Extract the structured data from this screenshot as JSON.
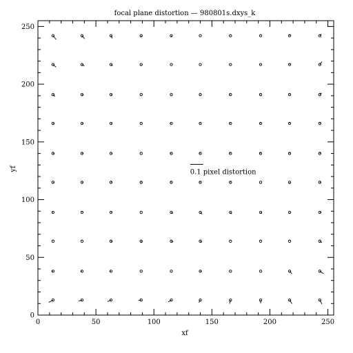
{
  "chart_data": {
    "type": "vector-field",
    "title": "focal plane distortion — 980801s.dxys_k",
    "xlabel": "xf",
    "ylabel": "yf",
    "xlim": [
      0,
      255
    ],
    "ylim": [
      0,
      255
    ],
    "xticks": [
      0,
      50,
      100,
      150,
      200,
      250
    ],
    "yticks": [
      0,
      50,
      100,
      150,
      200,
      250
    ],
    "key": {
      "label": "0.1 pixel distortion",
      "length": 0.1,
      "x": 130,
      "y": 130
    },
    "vector_scale": 115,
    "grid_x": [
      13,
      38,
      63,
      89,
      115,
      140,
      166,
      192,
      217,
      243
    ],
    "grid_y": [
      13,
      38,
      64,
      89,
      115,
      140,
      166,
      191,
      217,
      242
    ],
    "vectors": [
      {
        "x": 13,
        "y": 13,
        "dx": -0.053,
        "dy": -0.029
      },
      {
        "x": 38,
        "y": 13,
        "dx": -0.043,
        "dy": -0.013
      },
      {
        "x": 63,
        "y": 13,
        "dx": -0.044,
        "dy": -0.019
      },
      {
        "x": 89,
        "y": 13,
        "dx": -0.036,
        "dy": -0.004
      },
      {
        "x": 115,
        "y": 13,
        "dx": -0.039,
        "dy": -0.024
      },
      {
        "x": 140,
        "y": 13,
        "dx": -0.019,
        "dy": -0.031
      },
      {
        "x": 166,
        "y": 13,
        "dx": -0.011,
        "dy": -0.047
      },
      {
        "x": 192,
        "y": 13,
        "dx": 0.0,
        "dy": -0.041
      },
      {
        "x": 217,
        "y": 13,
        "dx": 0.03,
        "dy": -0.046
      },
      {
        "x": 243,
        "y": 13,
        "dx": 0.028,
        "dy": -0.05
      },
      {
        "x": 13,
        "y": 38,
        "dx": -0.014,
        "dy": 0.001
      },
      {
        "x": 38,
        "y": 38,
        "dx": -0.012,
        "dy": 0.001
      },
      {
        "x": 63,
        "y": 38,
        "dx": -0.011,
        "dy": 0.0
      },
      {
        "x": 89,
        "y": 38,
        "dx": 0.0,
        "dy": 0.001
      },
      {
        "x": 115,
        "y": 38,
        "dx": 0.001,
        "dy": 0.0
      },
      {
        "x": 140,
        "y": 38,
        "dx": 0.013,
        "dy": 0.002
      },
      {
        "x": 166,
        "y": 38,
        "dx": -0.001,
        "dy": -0.002
      },
      {
        "x": 192,
        "y": 38,
        "dx": -0.001,
        "dy": 0.0
      },
      {
        "x": 217,
        "y": 38,
        "dx": 0.03,
        "dy": -0.035
      },
      {
        "x": 243,
        "y": 38,
        "dx": 0.048,
        "dy": -0.033
      },
      {
        "x": 13,
        "y": 64,
        "dx": 0.001,
        "dy": 0.0
      },
      {
        "x": 38,
        "y": 64,
        "dx": 0.001,
        "dy": 0.0
      },
      {
        "x": 63,
        "y": 64,
        "dx": 0.019,
        "dy": -0.011
      },
      {
        "x": 89,
        "y": 64,
        "dx": 0.011,
        "dy": -0.019
      },
      {
        "x": 115,
        "y": 64,
        "dx": 0.024,
        "dy": -0.012
      },
      {
        "x": 140,
        "y": 64,
        "dx": 0.02,
        "dy": -0.013
      },
      {
        "x": 166,
        "y": 64,
        "dx": 0.001,
        "dy": 0.001
      },
      {
        "x": 192,
        "y": 64,
        "dx": -0.001,
        "dy": 0.001
      },
      {
        "x": 217,
        "y": 64,
        "dx": 0.001,
        "dy": 0.001
      },
      {
        "x": 243,
        "y": 64,
        "dx": 0.028,
        "dy": -0.018
      },
      {
        "x": 13,
        "y": 89,
        "dx": -0.009,
        "dy": 0.0
      },
      {
        "x": 38,
        "y": 89,
        "dx": 0.001,
        "dy": 0.007
      },
      {
        "x": 63,
        "y": 89,
        "dx": 0.008,
        "dy": 0.004
      },
      {
        "x": 89,
        "y": 89,
        "dx": 0.0,
        "dy": 0.0
      },
      {
        "x": 115,
        "y": 89,
        "dx": 0.02,
        "dy": -0.015
      },
      {
        "x": 140,
        "y": 89,
        "dx": 0.023,
        "dy": -0.022
      },
      {
        "x": 166,
        "y": 89,
        "dx": 0.017,
        "dy": -0.022
      },
      {
        "x": 192,
        "y": 89,
        "dx": 0.013,
        "dy": -0.017
      },
      {
        "x": 217,
        "y": 89,
        "dx": 0.004,
        "dy": -0.006
      },
      {
        "x": 243,
        "y": 89,
        "dx": 0.021,
        "dy": 0.001
      },
      {
        "x": 13,
        "y": 115,
        "dx": 0.008,
        "dy": 0.001
      },
      {
        "x": 38,
        "y": 115,
        "dx": 0.008,
        "dy": 0.004
      },
      {
        "x": 63,
        "y": 115,
        "dx": 0.009,
        "dy": 0.009
      },
      {
        "x": 89,
        "y": 115,
        "dx": 0.0,
        "dy": 0.01
      },
      {
        "x": 115,
        "y": 115,
        "dx": -0.01,
        "dy": 0.015
      },
      {
        "x": 140,
        "y": 115,
        "dx": -0.009,
        "dy": 0.011
      },
      {
        "x": 166,
        "y": 115,
        "dx": 0.0,
        "dy": 0.013
      },
      {
        "x": 192,
        "y": 115,
        "dx": 0.0,
        "dy": 0.0
      },
      {
        "x": 217,
        "y": 115,
        "dx": 0.0,
        "dy": -0.009
      },
      {
        "x": 243,
        "y": 115,
        "dx": 0.014,
        "dy": 0.007
      },
      {
        "x": 13,
        "y": 140,
        "dx": 0.01,
        "dy": -0.002
      },
      {
        "x": 38,
        "y": 140,
        "dx": 0.012,
        "dy": 0.0
      },
      {
        "x": 63,
        "y": 140,
        "dx": 0.007,
        "dy": -0.001
      },
      {
        "x": 89,
        "y": 140,
        "dx": 0.0,
        "dy": 0.0
      },
      {
        "x": 115,
        "y": 140,
        "dx": -0.01,
        "dy": 0.002
      },
      {
        "x": 140,
        "y": 140,
        "dx": -0.012,
        "dy": 0.009
      },
      {
        "x": 166,
        "y": 140,
        "dx": -0.01,
        "dy": 0.009
      },
      {
        "x": 192,
        "y": 140,
        "dx": -0.015,
        "dy": 0.013
      },
      {
        "x": 217,
        "y": 140,
        "dx": 0.0,
        "dy": 0.011
      },
      {
        "x": 243,
        "y": 140,
        "dx": 0.012,
        "dy": 0.017
      },
      {
        "x": 13,
        "y": 166,
        "dx": 0.016,
        "dy": -0.008
      },
      {
        "x": 38,
        "y": 166,
        "dx": 0.016,
        "dy": -0.004
      },
      {
        "x": 63,
        "y": 166,
        "dx": 0.012,
        "dy": -0.001
      },
      {
        "x": 89,
        "y": 166,
        "dx": 0.004,
        "dy": 0.0
      },
      {
        "x": 115,
        "y": 166,
        "dx": -0.01,
        "dy": 0.002
      },
      {
        "x": 140,
        "y": 166,
        "dx": -0.006,
        "dy": 0.002
      },
      {
        "x": 166,
        "y": 166,
        "dx": -0.01,
        "dy": 0.004
      },
      {
        "x": 192,
        "y": 166,
        "dx": -0.012,
        "dy": 0.008
      },
      {
        "x": 217,
        "y": 166,
        "dx": 0.0,
        "dy": 0.012
      },
      {
        "x": 243,
        "y": 166,
        "dx": 0.01,
        "dy": 0.014
      },
      {
        "x": 13,
        "y": 191,
        "dx": 0.026,
        "dy": -0.024
      },
      {
        "x": 38,
        "y": 191,
        "dx": 0.02,
        "dy": -0.007
      },
      {
        "x": 63,
        "y": 191,
        "dx": 0.013,
        "dy": -0.002
      },
      {
        "x": 89,
        "y": 191,
        "dx": 0.003,
        "dy": 0.0
      },
      {
        "x": 115,
        "y": 191,
        "dx": -0.003,
        "dy": 0.001
      },
      {
        "x": 140,
        "y": 191,
        "dx": -0.006,
        "dy": 0.001
      },
      {
        "x": 166,
        "y": 191,
        "dx": -0.008,
        "dy": 0.004
      },
      {
        "x": 192,
        "y": 191,
        "dx": -0.007,
        "dy": 0.004
      },
      {
        "x": 217,
        "y": 191,
        "dx": 0.0,
        "dy": 0.007
      },
      {
        "x": 243,
        "y": 191,
        "dx": 0.023,
        "dy": 0.022
      },
      {
        "x": 13,
        "y": 217,
        "dx": 0.041,
        "dy": -0.033
      },
      {
        "x": 38,
        "y": 217,
        "dx": 0.031,
        "dy": -0.02
      },
      {
        "x": 63,
        "y": 217,
        "dx": 0.021,
        "dy": -0.016
      },
      {
        "x": 89,
        "y": 217,
        "dx": 0.0,
        "dy": -0.007
      },
      {
        "x": 115,
        "y": 217,
        "dx": 0.0,
        "dy": 0.001
      },
      {
        "x": 140,
        "y": 217,
        "dx": 0.0,
        "dy": 0.0
      },
      {
        "x": 166,
        "y": 217,
        "dx": -0.002,
        "dy": 0.001
      },
      {
        "x": 192,
        "y": 217,
        "dx": -0.001,
        "dy": 0.004
      },
      {
        "x": 217,
        "y": 217,
        "dx": 0.005,
        "dy": 0.012
      },
      {
        "x": 243,
        "y": 217,
        "dx": 0.028,
        "dy": 0.036
      },
      {
        "x": 13,
        "y": 242,
        "dx": 0.041,
        "dy": -0.05
      },
      {
        "x": 38,
        "y": 242,
        "dx": 0.034,
        "dy": -0.039
      },
      {
        "x": 63,
        "y": 242,
        "dx": 0.015,
        "dy": -0.034
      },
      {
        "x": 89,
        "y": 242,
        "dx": 0.0,
        "dy": -0.018
      },
      {
        "x": 115,
        "y": 242,
        "dx": 0.0,
        "dy": -0.012
      },
      {
        "x": 140,
        "y": 242,
        "dx": 0.0,
        "dy": 0.0
      },
      {
        "x": 166,
        "y": 242,
        "dx": -0.004,
        "dy": 0.001
      },
      {
        "x": 192,
        "y": 242,
        "dx": -0.004,
        "dy": 0.002
      },
      {
        "x": 217,
        "y": 242,
        "dx": 0.006,
        "dy": 0.016
      },
      {
        "x": 243,
        "y": 242,
        "dx": 0.02,
        "dy": 0.02
      }
    ]
  }
}
